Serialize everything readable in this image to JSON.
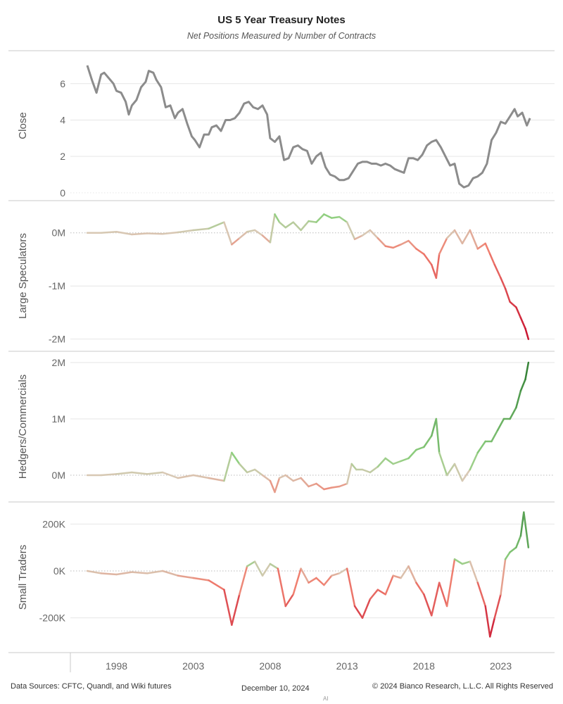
{
  "title": "US 5 Year Treasury Notes",
  "subtitle": "Net Positions Measured by Number of Contracts",
  "footer": {
    "source": "Data Sources: CFTC, Quandl, and Wiki futures",
    "date": "December 10, 2024",
    "copyright": "© 2024 Bianco Research, L.L.C. All Rights Reserved",
    "mark": "AI"
  },
  "x_axis": {
    "min": 1995.0,
    "max": 2026.5,
    "ticks": [
      1998,
      2003,
      2008,
      2013,
      2018,
      2023
    ]
  },
  "colors": {
    "close_line": "#8c8c8c",
    "negative_deep": "#c8102e",
    "negative": "#f08070",
    "neutral": "#d8c8b4",
    "positive": "#90d080",
    "positive_deep": "#2e7d32",
    "gridline": "#e6e6e6",
    "zero_line": "#bbbbbb",
    "panel_border": "#c8c8c8"
  },
  "chart_data": [
    {
      "type": "line",
      "panel": "close",
      "ylabel": "Close",
      "ylim": [
        -0.2,
        7.5
      ],
      "yticks": [
        0,
        2,
        4,
        6
      ],
      "ytick_labels": [
        "0",
        "2",
        "4",
        "6"
      ],
      "colored": false,
      "series": [
        {
          "x": [
            1996.1,
            1996.4,
            1996.7,
            1997.0,
            1997.2,
            1997.5,
            1997.8,
            1998.0,
            1998.3,
            1998.6,
            1998.8,
            1999.0,
            1999.3,
            1999.6,
            1999.9,
            2000.1,
            2000.4,
            2000.6,
            2000.9,
            2001.2,
            2001.5,
            2001.8,
            2002.0,
            2002.3,
            2002.6,
            2002.9,
            2003.1,
            2003.4,
            2003.7,
            2004.0,
            2004.2,
            2004.5,
            2004.8,
            2005.1,
            2005.4,
            2005.7,
            2006.0,
            2006.3,
            2006.6,
            2006.9,
            2007.2,
            2007.5,
            2007.8,
            2008.0,
            2008.3,
            2008.6,
            2008.9,
            2009.2,
            2009.5,
            2009.8,
            2010.1,
            2010.4,
            2010.7,
            2011.0,
            2011.3,
            2011.6,
            2011.9,
            2012.2,
            2012.5,
            2012.8,
            2013.1,
            2013.4,
            2013.7,
            2014.0,
            2014.3,
            2014.6,
            2014.9,
            2015.2,
            2015.5,
            2015.8,
            2016.1,
            2016.4,
            2016.7,
            2017.0,
            2017.3,
            2017.6,
            2017.9,
            2018.2,
            2018.5,
            2018.8,
            2019.1,
            2019.4,
            2019.7,
            2020.0,
            2020.3,
            2020.6,
            2020.9,
            2021.2,
            2021.5,
            2021.8,
            2022.1,
            2022.4,
            2022.7,
            2023.0,
            2023.3,
            2023.6,
            2023.9,
            2024.1,
            2024.4,
            2024.7,
            2024.9
          ],
          "y": [
            7.0,
            6.2,
            5.5,
            6.5,
            6.6,
            6.3,
            6.0,
            5.6,
            5.5,
            5.0,
            4.3,
            4.8,
            5.1,
            5.8,
            6.1,
            6.7,
            6.6,
            6.2,
            5.8,
            4.7,
            4.8,
            4.1,
            4.4,
            4.6,
            3.8,
            3.1,
            2.9,
            2.5,
            3.2,
            3.2,
            3.6,
            3.7,
            3.4,
            4.0,
            4.0,
            4.1,
            4.4,
            4.9,
            5.0,
            4.7,
            4.6,
            4.8,
            4.3,
            3.0,
            2.8,
            3.1,
            1.8,
            1.9,
            2.5,
            2.6,
            2.4,
            2.3,
            1.6,
            2.0,
            2.2,
            1.4,
            1.0,
            0.9,
            0.7,
            0.7,
            0.8,
            1.2,
            1.6,
            1.7,
            1.7,
            1.6,
            1.6,
            1.5,
            1.6,
            1.5,
            1.3,
            1.2,
            1.1,
            1.9,
            1.9,
            1.8,
            2.1,
            2.6,
            2.8,
            2.9,
            2.5,
            2.0,
            1.5,
            1.6,
            0.5,
            0.3,
            0.4,
            0.8,
            0.9,
            1.1,
            1.6,
            2.9,
            3.3,
            3.9,
            3.8,
            4.2,
            4.6,
            4.2,
            4.4,
            3.7,
            4.1
          ]
        }
      ]
    },
    {
      "type": "line",
      "panel": "large_speculators",
      "ylabel": "Large Speculators",
      "ylim": [
        -2.15,
        0.5
      ],
      "yticks": [
        0,
        -1,
        -2
      ],
      "ytick_labels": [
        "0M",
        "-1M",
        "-2M"
      ],
      "colored": true,
      "color_scale_max": 2.0,
      "series": [
        {
          "x": [
            1996.1,
            1997.0,
            1998.0,
            1999.0,
            2000.0,
            2001.0,
            2002.0,
            2003.0,
            2004.0,
            2005.0,
            2005.5,
            2006.0,
            2006.5,
            2007.0,
            2007.5,
            2008.0,
            2008.3,
            2008.6,
            2009.0,
            2009.5,
            2010.0,
            2010.5,
            2011.0,
            2011.5,
            2012.0,
            2012.5,
            2013.0,
            2013.5,
            2014.0,
            2014.5,
            2015.0,
            2015.5,
            2016.0,
            2016.5,
            2017.0,
            2017.5,
            2018.0,
            2018.5,
            2018.8,
            2019.0,
            2019.5,
            2020.0,
            2020.5,
            2021.0,
            2021.5,
            2022.0,
            2022.3,
            2022.6,
            2023.0,
            2023.3,
            2023.6,
            2024.0,
            2024.3,
            2024.6,
            2024.8
          ],
          "y": [
            0.0,
            0.0,
            0.02,
            -0.03,
            -0.01,
            -0.02,
            0.01,
            0.05,
            0.08,
            0.2,
            -0.22,
            -0.1,
            0.02,
            0.05,
            -0.05,
            -0.18,
            0.35,
            0.2,
            0.1,
            0.2,
            0.05,
            0.22,
            0.2,
            0.35,
            0.28,
            0.3,
            0.2,
            -0.12,
            -0.05,
            0.05,
            -0.1,
            -0.25,
            -0.28,
            -0.22,
            -0.15,
            -0.3,
            -0.4,
            -0.6,
            -0.85,
            -0.4,
            -0.1,
            0.05,
            -0.2,
            0.05,
            -0.3,
            -0.2,
            -0.4,
            -0.6,
            -0.85,
            -1.05,
            -1.3,
            -1.4,
            -1.6,
            -1.8,
            -2.0
          ]
        }
      ]
    },
    {
      "type": "line",
      "panel": "hedgers_commercials",
      "ylabel": "Hedgers/Commercials",
      "ylim": [
        -0.4,
        2.1
      ],
      "yticks": [
        0,
        1,
        2
      ],
      "ytick_labels": [
        "0M",
        "1M",
        "2M"
      ],
      "colored": true,
      "color_scale_max": 2.0,
      "series": [
        {
          "x": [
            1996.1,
            1997.0,
            1998.0,
            1999.0,
            2000.0,
            2001.0,
            2002.0,
            2003.0,
            2004.0,
            2005.0,
            2005.5,
            2006.0,
            2006.5,
            2007.0,
            2007.5,
            2008.0,
            2008.3,
            2008.6,
            2009.0,
            2009.5,
            2010.0,
            2010.5,
            2011.0,
            2011.5,
            2012.0,
            2012.5,
            2013.0,
            2013.3,
            2013.6,
            2014.0,
            2014.5,
            2015.0,
            2015.5,
            2016.0,
            2016.5,
            2017.0,
            2017.5,
            2018.0,
            2018.5,
            2018.8,
            2019.0,
            2019.5,
            2020.0,
            2020.5,
            2021.0,
            2021.5,
            2022.0,
            2022.4,
            2022.8,
            2023.2,
            2023.6,
            2024.0,
            2024.3,
            2024.6,
            2024.8
          ],
          "y": [
            0.0,
            0.0,
            0.02,
            0.05,
            0.02,
            0.05,
            -0.05,
            0.0,
            -0.05,
            -0.1,
            0.4,
            0.2,
            0.05,
            0.1,
            0.0,
            -0.1,
            -0.3,
            -0.05,
            0.0,
            -0.1,
            -0.05,
            -0.2,
            -0.15,
            -0.25,
            -0.22,
            -0.2,
            -0.15,
            0.2,
            0.1,
            0.1,
            0.05,
            0.15,
            0.3,
            0.2,
            0.25,
            0.3,
            0.45,
            0.5,
            0.7,
            1.0,
            0.4,
            0.0,
            0.2,
            -0.1,
            0.1,
            0.4,
            0.6,
            0.6,
            0.8,
            1.0,
            1.0,
            1.2,
            1.5,
            1.7,
            2.0
          ]
        }
      ]
    },
    {
      "type": "line",
      "panel": "small_traders",
      "ylabel": "Small Traders",
      "ylim": [
        -330,
        270
      ],
      "yticks": [
        200,
        0,
        -200
      ],
      "ytick_labels": [
        "200K",
        "0K",
        "-200K"
      ],
      "colored": true,
      "color_scale_max": 300,
      "series": [
        {
          "x": [
            1996.1,
            1997.0,
            1998.0,
            1999.0,
            2000.0,
            2001.0,
            2002.0,
            2003.0,
            2004.0,
            2005.0,
            2005.5,
            2006.0,
            2006.5,
            2007.0,
            2007.5,
            2008.0,
            2008.5,
            2009.0,
            2009.5,
            2010.0,
            2010.5,
            2011.0,
            2011.5,
            2012.0,
            2012.5,
            2013.0,
            2013.5,
            2014.0,
            2014.5,
            2015.0,
            2015.5,
            2016.0,
            2016.5,
            2017.0,
            2017.5,
            2018.0,
            2018.5,
            2019.0,
            2019.5,
            2020.0,
            2020.5,
            2021.0,
            2021.5,
            2022.0,
            2022.3,
            2022.6,
            2023.0,
            2023.3,
            2023.6,
            2024.0,
            2024.3,
            2024.5,
            2024.8
          ],
          "y": [
            0,
            -10,
            -15,
            -5,
            -10,
            0,
            -20,
            -30,
            -40,
            -80,
            -230,
            -100,
            20,
            40,
            -20,
            30,
            10,
            -150,
            -100,
            10,
            -50,
            -30,
            -60,
            -20,
            -10,
            10,
            -150,
            -200,
            -120,
            -80,
            -100,
            -20,
            -30,
            20,
            -50,
            -100,
            -190,
            -50,
            -150,
            50,
            30,
            40,
            -50,
            -150,
            -280,
            -200,
            -100,
            50,
            80,
            100,
            150,
            250,
            100
          ]
        }
      ]
    }
  ]
}
